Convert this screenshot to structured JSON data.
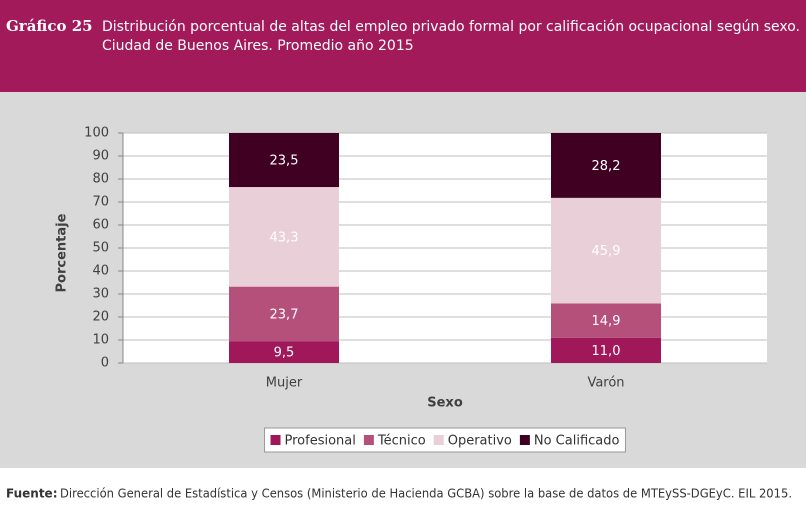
{
  "header": {
    "number": "Gráfico 25",
    "title_lines": [
      "Distribución porcentual de altas del empleo privado formal por calificación ocupacional según sexo.",
      "Ciudad de Buenos Aires. Promedio año 2015"
    ]
  },
  "chart_data": {
    "type": "stacked_bar",
    "x_label": "Sexo",
    "y_label": "Porcentaje",
    "categories": [
      "Mujer",
      "Varón"
    ],
    "series": [
      {
        "name": "Profesional",
        "color": "#a0185a",
        "label_color": "#ffffff",
        "values": [
          9.5,
          11.0
        ],
        "value_labels": [
          "9,5",
          "11,0"
        ]
      },
      {
        "name": "Técnico",
        "color": "#b45079",
        "label_color": "#ffffff",
        "values": [
          23.7,
          14.9
        ],
        "value_labels": [
          "23,7",
          "14,9"
        ]
      },
      {
        "name": "Operativo",
        "color": "#e9cfd8",
        "label_color": "#ffffff",
        "values": [
          43.3,
          45.9
        ],
        "value_labels": [
          "43,3",
          "45,9"
        ]
      },
      {
        "name": "No Calificado",
        "color": "#3f0021",
        "label_color": "#ffffff",
        "values": [
          23.5,
          28.2
        ],
        "value_labels": [
          "23,5",
          "28,2"
        ]
      }
    ],
    "ylim": [
      0,
      100
    ],
    "yticks": [
      0,
      10,
      20,
      30,
      40,
      50,
      60,
      70,
      80,
      90,
      100
    ],
    "grid": true
  },
  "footer": {
    "label": "Fuente:",
    "text": "Dirección General de Estadística y Censos (Ministerio de Hacienda GCBA) sobre la base de datos de MTEySS-DGEyC. EIL 2015."
  }
}
